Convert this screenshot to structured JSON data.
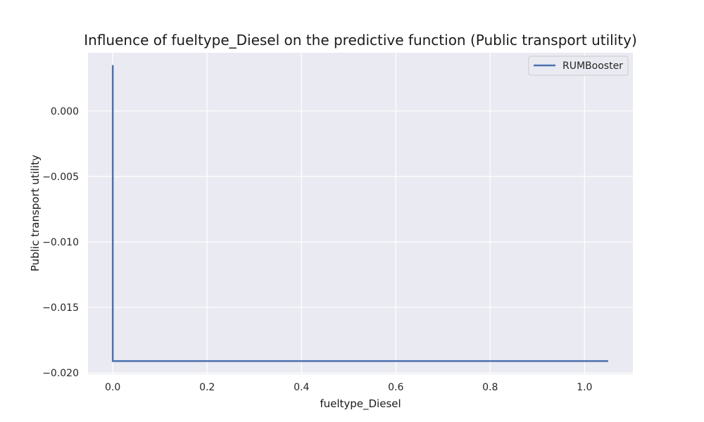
{
  "chart_data": {
    "type": "line",
    "title": "Influence of fueltype_Diesel on the predictive function (Public transport utility)",
    "xlabel": "fueltype_Diesel",
    "ylabel": "Public transport utility",
    "xlim": [
      -0.0525,
      1.1025
    ],
    "ylim": [
      -0.0201,
      0.00445
    ],
    "x_ticks": [
      0.0,
      0.2,
      0.4,
      0.6,
      0.8,
      1.0
    ],
    "x_tick_labels": [
      "0.0",
      "0.2",
      "0.4",
      "0.6",
      "0.8",
      "1.0"
    ],
    "y_ticks": [
      0.0,
      -0.005,
      -0.01,
      -0.015,
      -0.02
    ],
    "y_tick_labels": [
      "0.000",
      "−0.005",
      "−0.010",
      "−0.015",
      "−0.020"
    ],
    "grid": true,
    "legend_position": "top-right",
    "series": [
      {
        "name": "RUMBooster",
        "color": "#4c72b0",
        "x": [
          0.0,
          0.0,
          1.05
        ],
        "y": [
          0.0035,
          -0.0191,
          -0.0191
        ]
      }
    ],
    "background_color": "#eaeaf2",
    "grid_color": "#ffffff"
  }
}
